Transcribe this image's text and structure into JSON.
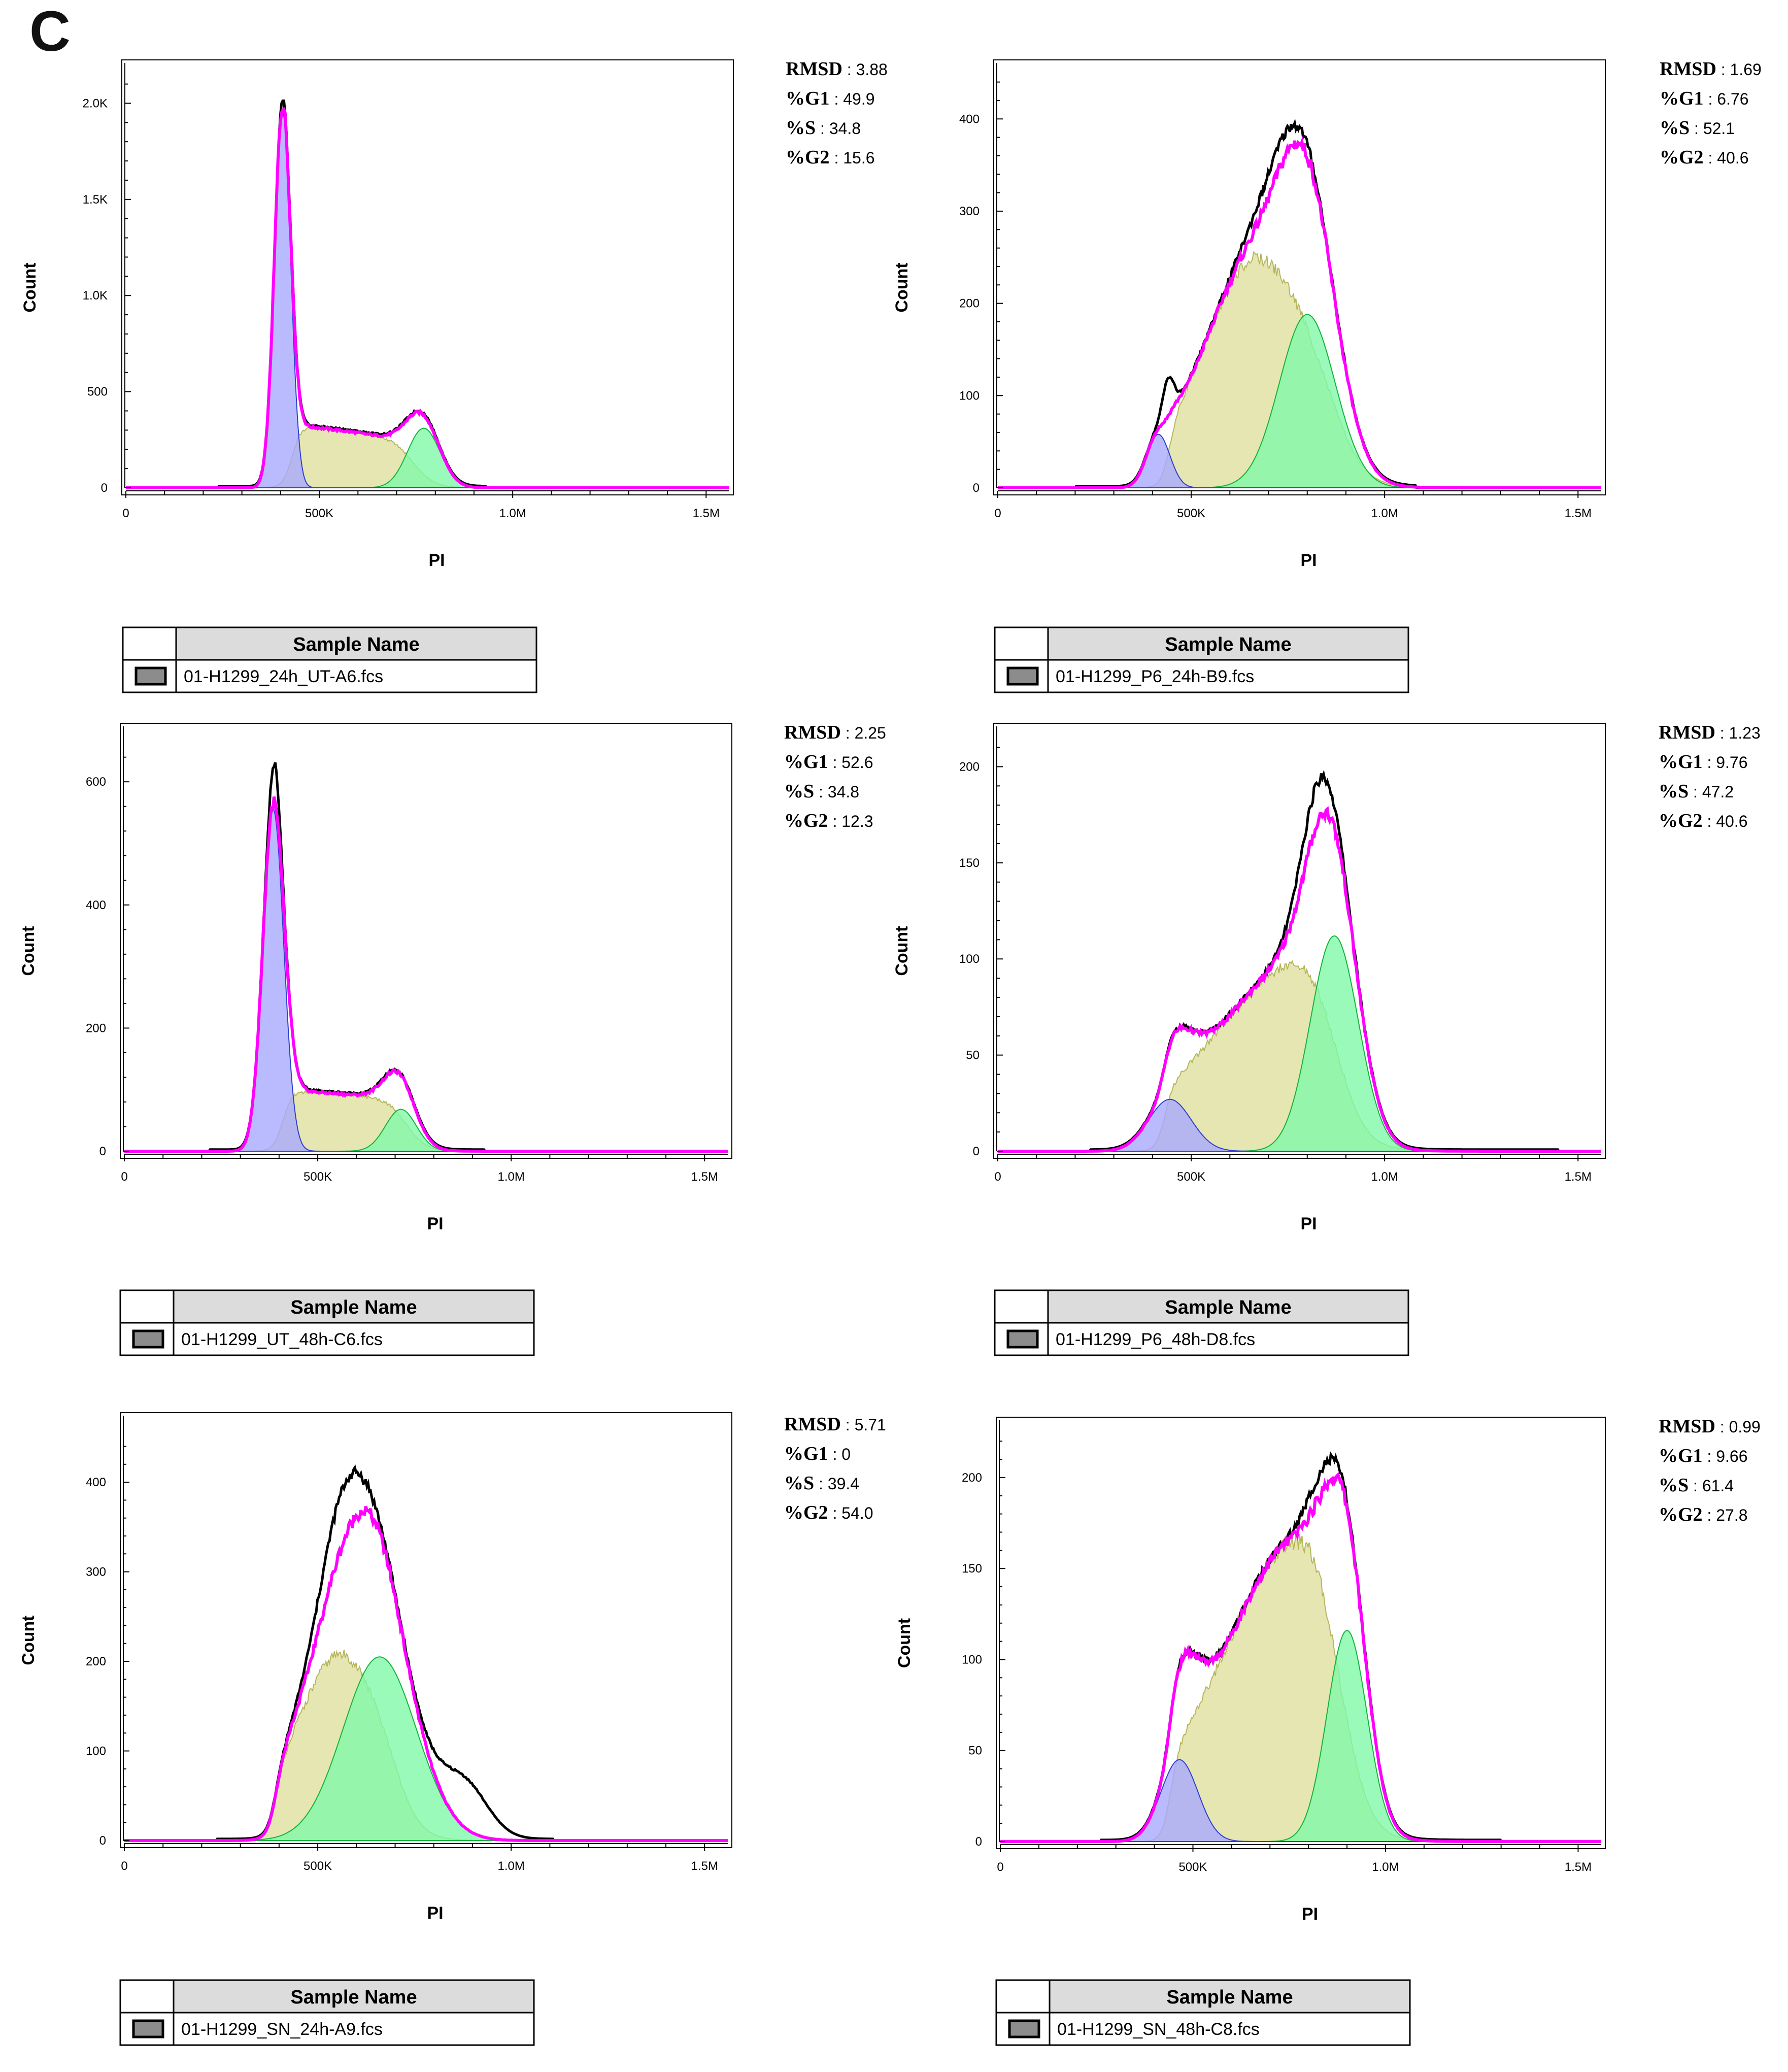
{
  "figure": {
    "panel_label": "C"
  },
  "colors": {
    "raw": "#000000",
    "fit": "#ff00ff",
    "g1_fill": "#a9a9ff",
    "g1_line": "#2f3fd0",
    "s_fill": "#e2e2a6",
    "s_line": "#b5b55a",
    "g2_fill": "#7ff9a9",
    "g2_line": "#14b43a",
    "overlap_g2": "#93e07f",
    "overlap_g1": "#a6a6a6"
  },
  "chart_data": [
    {
      "type": "area",
      "sample_name_header": "Sample Name",
      "sample_name": "01-H1299_24h_UT-A6.fcs",
      "xlabel": "PI",
      "ylabel": "Count",
      "xlim": [
        0,
        1560000
      ],
      "ylim": [
        0,
        2120
      ],
      "xticks": [
        0,
        500000,
        1000000,
        1500000
      ],
      "xtick_labels": [
        "0",
        "500K",
        "1.0M",
        "1.5M"
      ],
      "yticks": [
        0,
        500,
        1000,
        1500,
        2000
      ],
      "ytick_labels": [
        "0",
        "500",
        "1.0K",
        "1.5K",
        "2.0K"
      ],
      "stats": [
        {
          "label": "RMSD",
          "value": "3.88"
        },
        {
          "label": "%G1",
          "value": "49.9"
        },
        {
          "label": "%S",
          "value": "34.8"
        },
        {
          "label": "%G2",
          "value": "15.6"
        }
      ],
      "model": {
        "g1": {
          "mu": 405000,
          "sigma": 21000,
          "amp": 1960
        },
        "s": {
          "a": 430000,
          "b": 745000,
          "h0": 330,
          "h1": 250,
          "edge": 26000
        },
        "g2": {
          "mu": 770000,
          "sigma": 42000,
          "amp": 310
        },
        "raw_extra": [],
        "raw_range": [
          240000,
          930000
        ]
      }
    },
    {
      "type": "area",
      "sample_name_header": "Sample Name",
      "sample_name": "01-H1299_P6_24h-B9.fcs",
      "xlabel": "PI",
      "ylabel": "Count",
      "xlim": [
        0,
        1560000
      ],
      "ylim": [
        0,
        442
      ],
      "xticks": [
        0,
        500000,
        1000000,
        1500000
      ],
      "xtick_labels": [
        "0",
        "500K",
        "1.0M",
        "1.5M"
      ],
      "yticks": [
        0,
        100,
        200,
        300,
        400
      ],
      "ytick_labels": [
        "0",
        "100",
        "200",
        "300",
        "400"
      ],
      "stats": [
        {
          "label": "RMSD",
          "value": "1.69"
        },
        {
          "label": "%G1",
          "value": "6.76"
        },
        {
          "label": "%S",
          "value": "52.1"
        },
        {
          "label": "%G2",
          "value": "40.6"
        }
      ],
      "model": {
        "g1": {
          "mu": 415000,
          "sigma": 30000,
          "amp": 58
        },
        "s": {
          "a": 440000,
          "b": 900000,
          "h0": 30,
          "h1": 250,
          "peak": 670000,
          "edge": 45000,
          "shape": "hump"
        },
        "g2": {
          "mu": 800000,
          "sigma": 72000,
          "amp": 188
        },
        "raw_extra": [
          {
            "mu": 440000,
            "sigma": 14000,
            "amp": 40
          },
          {
            "mu": 720000,
            "sigma": 60000,
            "amp": 25
          }
        ],
        "raw_range": [
          200000,
          1080000
        ]
      }
    },
    {
      "type": "area",
      "sample_name_header": "Sample Name",
      "sample_name": "01-H1299_UT_48h-C6.fcs",
      "xlabel": "PI",
      "ylabel": "Count",
      "xlim": [
        0,
        1560000
      ],
      "ylim": [
        0,
        662
      ],
      "xticks": [
        0,
        500000,
        1000000,
        1500000
      ],
      "xtick_labels": [
        "0",
        "500K",
        "1.0M",
        "1.5M"
      ],
      "yticks": [
        0,
        200,
        400,
        600
      ],
      "ytick_labels": [
        "0",
        "200",
        "400",
        "600"
      ],
      "stats": [
        {
          "label": "RMSD",
          "value": "2.25"
        },
        {
          "label": "%G1",
          "value": "52.6"
        },
        {
          "label": "%S",
          "value": "34.8"
        },
        {
          "label": "%G2",
          "value": "12.3"
        }
      ],
      "model": {
        "g1": {
          "mu": 385000,
          "sigma": 27000,
          "amp": 555
        },
        "s": {
          "a": 410000,
          "b": 730000,
          "h0": 100,
          "h1": 85,
          "edge": 25000
        },
        "g2": {
          "mu": 715000,
          "sigma": 40000,
          "amp": 68
        },
        "raw_extra": [
          {
            "mu": 390000,
            "sigma": 15000,
            "amp": 60
          }
        ],
        "raw_range": [
          220000,
          930000
        ]
      }
    },
    {
      "type": "area",
      "sample_name_header": "Sample Name",
      "sample_name": "01-H1299_P6_48h-D8.fcs",
      "xlabel": "PI",
      "ylabel": "Count",
      "xlim": [
        0,
        1560000
      ],
      "ylim": [
        0,
        212
      ],
      "xticks": [
        0,
        500000,
        1000000,
        1500000
      ],
      "xtick_labels": [
        "0",
        "500K",
        "1.0M",
        "1.5M"
      ],
      "yticks": [
        0,
        50,
        100,
        150,
        200
      ],
      "ytick_labels": [
        "0",
        "50",
        "100",
        "150",
        "200"
      ],
      "stats": [
        {
          "label": "RMSD",
          "value": "1.23"
        },
        {
          "label": "%G1",
          "value": "9.76"
        },
        {
          "label": "%S",
          "value": "47.2"
        },
        {
          "label": "%G2",
          "value": "40.6"
        }
      ],
      "model": {
        "g1": {
          "mu": 445000,
          "sigma": 55000,
          "amp": 27
        },
        "s": {
          "a": 430000,
          "b": 920000,
          "h0": 18,
          "h1": 100,
          "peak": 790000,
          "edge": 45000,
          "shape": "hump"
        },
        "g2": {
          "mu": 870000,
          "sigma": 62000,
          "amp": 112
        },
        "raw_extra": [
          {
            "mu": 820000,
            "sigma": 45000,
            "amp": 20
          }
        ],
        "raw_range": [
          240000,
          1450000
        ]
      }
    },
    {
      "type": "area",
      "sample_name_header": "Sample Name",
      "sample_name": "01-H1299_SN_24h-A9.fcs",
      "xlabel": "PI",
      "ylabel": "Count",
      "xlim": [
        0,
        1560000
      ],
      "ylim": [
        0,
        455
      ],
      "xticks": [
        0,
        500000,
        1000000,
        1500000
      ],
      "xtick_labels": [
        "0",
        "500K",
        "1.0M",
        "1.5M"
      ],
      "yticks": [
        0,
        100,
        200,
        300,
        400
      ],
      "ytick_labels": [
        "0",
        "100",
        "200",
        "300",
        "400"
      ],
      "stats": [
        {
          "label": "RMSD",
          "value": "5.71"
        },
        {
          "label": "%G1",
          "value": "0"
        },
        {
          "label": "%S",
          "value": "39.4"
        },
        {
          "label": "%G2",
          "value": "54.0"
        }
      ],
      "model": {
        "g1": {
          "mu": 400000,
          "sigma": 30000,
          "amp": 0
        },
        "s": {
          "a": 390000,
          "b": 720000,
          "h0": 60,
          "h1": 210,
          "peak": 560000,
          "edge": 35000,
          "shape": "hump"
        },
        "g2": {
          "mu": 660000,
          "sigma": 95000,
          "amp": 205
        },
        "raw_extra": [
          {
            "mu": 560000,
            "sigma": 55000,
            "amp": 60
          },
          {
            "mu": 880000,
            "sigma": 60000,
            "amp": 55
          }
        ],
        "raw_range": [
          240000,
          1110000
        ]
      }
    },
    {
      "type": "area",
      "sample_name_header": "Sample Name",
      "sample_name": "01-H1299_SN_48h-C8.fcs",
      "xlabel": "PI",
      "ylabel": "Count",
      "xlim": [
        0,
        1560000
      ],
      "ylim": [
        0,
        222
      ],
      "xticks": [
        0,
        500000,
        1000000,
        1500000
      ],
      "xtick_labels": [
        "0",
        "500K",
        "1.0M",
        "1.5M"
      ],
      "yticks": [
        0,
        50,
        100,
        150,
        200
      ],
      "ytick_labels": [
        "0",
        "50",
        "100",
        "150",
        "200"
      ],
      "stats": [
        {
          "label": "RMSD",
          "value": "0.99"
        },
        {
          "label": "%G1",
          "value": "9.66"
        },
        {
          "label": "%S",
          "value": "61.4"
        },
        {
          "label": "%G2",
          "value": "27.8"
        }
      ],
      "model": {
        "g1": {
          "mu": 465000,
          "sigma": 48000,
          "amp": 45
        },
        "s": {
          "a": 440000,
          "b": 930000,
          "h0": 20,
          "h1": 170,
          "peak": 790000,
          "edge": 45000,
          "shape": "hump"
        },
        "g2": {
          "mu": 900000,
          "sigma": 52000,
          "amp": 116
        },
        "raw_extra": [
          {
            "mu": 830000,
            "sigma": 40000,
            "amp": 12
          }
        ],
        "raw_range": [
          260000,
          1300000
        ]
      }
    }
  ]
}
